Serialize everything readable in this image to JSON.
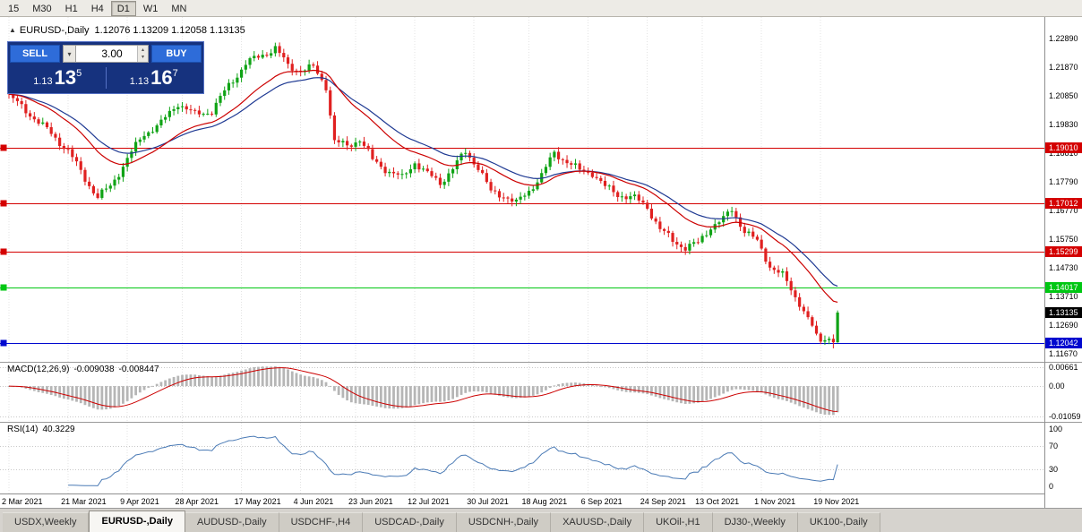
{
  "toolbar": {
    "timeframes": [
      "15",
      "M30",
      "H1",
      "H4",
      "D1",
      "W1",
      "MN"
    ],
    "active": "D1"
  },
  "chart_header": {
    "symbol": "EURUSD-,Daily",
    "ohlc": "1.12076 1.13209 1.12058 1.13135"
  },
  "trade_panel": {
    "sell_label": "SELL",
    "buy_label": "BUY",
    "volume": "3.00",
    "bid": {
      "prefix": "1.13",
      "big": "13",
      "sup": "5"
    },
    "ask": {
      "prefix": "1.13",
      "big": "16",
      "sup": "7"
    }
  },
  "tabs": [
    {
      "label": "USDX,Weekly",
      "active": false
    },
    {
      "label": "EURUSD-,Daily",
      "active": true
    },
    {
      "label": "AUDUSD-,Daily",
      "active": false
    },
    {
      "label": "USDCHF-,H4",
      "active": false
    },
    {
      "label": "USDCAD-,Daily",
      "active": false
    },
    {
      "label": "USDCNH-,Daily",
      "active": false
    },
    {
      "label": "XAUUSD-,Daily",
      "active": false
    },
    {
      "label": "UKOil-,H1",
      "active": false
    },
    {
      "label": "DJ30-,Weekly",
      "active": false
    },
    {
      "label": "UK100-,Daily",
      "active": false
    }
  ],
  "chart_data": {
    "type": "candlestick",
    "symbol": "EURUSD-",
    "timeframe": "Daily",
    "quote": {
      "open": 1.12076,
      "high": 1.13209,
      "low": 1.12058,
      "close": 1.13135
    },
    "pre_close_low": 1.1186,
    "current_price": {
      "label": "1.13135",
      "value": 1.13135,
      "color": "#000000"
    },
    "candles_total": 197,
    "y_ticks": [
      {
        "label": "1.22890",
        "value": 1.2289
      },
      {
        "label": "1.21870",
        "value": 1.2187
      },
      {
        "label": "1.20850",
        "value": 1.2085
      },
      {
        "label": "1.19830",
        "value": 1.1983
      },
      {
        "label": "1.18810",
        "value": 1.1881
      },
      {
        "label": "1.17790",
        "value": 1.1779
      },
      {
        "label": "1.16770",
        "value": 1.1677
      },
      {
        "label": "1.15750",
        "value": 1.1575
      },
      {
        "label": "1.14730",
        "value": 1.1473
      },
      {
        "label": "1.13710",
        "value": 1.1371
      },
      {
        "label": "1.12690",
        "value": 1.1269
      },
      {
        "label": "1.11670",
        "value": 1.1167
      }
    ],
    "levels": [
      {
        "label": "1.19010",
        "value": 1.1901,
        "color": "#d40000"
      },
      {
        "label": "1.17012",
        "value": 1.17012,
        "color": "#d40000"
      },
      {
        "label": "1.15299",
        "value": 1.15299,
        "color": "#d40000"
      },
      {
        "label": "1.14017",
        "value": 1.14017,
        "color": "#00c713"
      },
      {
        "label": "1.12042",
        "value": 1.12042,
        "color": "#0008cf"
      }
    ],
    "x_labels": [
      {
        "label": "2 Mar 2021",
        "index": 0
      },
      {
        "label": "21 Mar 2021",
        "index": 14
      },
      {
        "label": "9 Apr 2021",
        "index": 28
      },
      {
        "label": "28 Apr 2021",
        "index": 41
      },
      {
        "label": "17 May 2021",
        "index": 55
      },
      {
        "label": "4 Jun 2021",
        "index": 69
      },
      {
        "label": "23 Jun 2021",
        "index": 82
      },
      {
        "label": "12 Jul 2021",
        "index": 96
      },
      {
        "label": "30 Jul 2021",
        "index": 110
      },
      {
        "label": "18 Aug 2021",
        "index": 123
      },
      {
        "label": "6 Sep 2021",
        "index": 137
      },
      {
        "label": "24 Sep 2021",
        "index": 151
      },
      {
        "label": "13 Oct 2021",
        "index": 164
      },
      {
        "label": "1 Nov 2021",
        "index": 178
      },
      {
        "label": "19 Nov 2021",
        "index": 192
      }
    ],
    "price_path": [
      [
        0,
        1.2085
      ],
      [
        5,
        1.202
      ],
      [
        10,
        1.195
      ],
      [
        14,
        1.189
      ],
      [
        18,
        1.179
      ],
      [
        21,
        1.1725
      ],
      [
        24,
        1.1762
      ],
      [
        28,
        1.1862
      ],
      [
        32,
        1.195
      ],
      [
        36,
        1.1988
      ],
      [
        40,
        1.206
      ],
      [
        44,
        1.2018
      ],
      [
        48,
        1.2032
      ],
      [
        52,
        1.2122
      ],
      [
        56,
        1.22
      ],
      [
        60,
        1.2232
      ],
      [
        63,
        1.2255
      ],
      [
        66,
        1.2192
      ],
      [
        69,
        1.2176
      ],
      [
        72,
        1.2186
      ],
      [
        75,
        1.212
      ],
      [
        77,
        1.1922
      ],
      [
        80,
        1.1906
      ],
      [
        83,
        1.1932
      ],
      [
        86,
        1.1856
      ],
      [
        90,
        1.1816
      ],
      [
        93,
        1.1792
      ],
      [
        96,
        1.185
      ],
      [
        99,
        1.1806
      ],
      [
        102,
        1.1776
      ],
      [
        105,
        1.1826
      ],
      [
        108,
        1.1886
      ],
      [
        111,
        1.1832
      ],
      [
        114,
        1.1742
      ],
      [
        117,
        1.1732
      ],
      [
        120,
        1.1702
      ],
      [
        123,
        1.1748
      ],
      [
        126,
        1.1802
      ],
      [
        129,
        1.1882
      ],
      [
        132,
        1.1852
      ],
      [
        135,
        1.1818
      ],
      [
        138,
        1.1812
      ],
      [
        141,
        1.176
      ],
      [
        144,
        1.1735
      ],
      [
        148,
        1.172
      ],
      [
        151,
        1.169
      ],
      [
        154,
        1.161
      ],
      [
        157,
        1.157
      ],
      [
        160,
        1.1545
      ],
      [
        163,
        1.156
      ],
      [
        166,
        1.162
      ],
      [
        169,
        1.1645
      ],
      [
        171,
        1.168
      ],
      [
        174,
        1.1605
      ],
      [
        177,
        1.1565
      ],
      [
        180,
        1.148
      ],
      [
        183,
        1.1445
      ],
      [
        186,
        1.137
      ],
      [
        189,
        1.1295
      ],
      [
        192,
        1.121
      ],
      [
        194,
        1.122
      ],
      [
        195,
        1.12076
      ],
      [
        196,
        1.13135
      ]
    ],
    "macd": {
      "name": "MACD(12,26,9)",
      "main": "-0.009038",
      "signal": "-0.008447",
      "axis": [
        {
          "label": "0.00661",
          "value": 0.00661
        },
        {
          "label": "0.00",
          "value": 0
        },
        {
          "label": "-0.01059",
          "value": -0.01059
        }
      ]
    },
    "rsi": {
      "name": "RSI(14)",
      "value": "40.3229",
      "levels": [
        70,
        30
      ],
      "axis": [
        {
          "label": "100",
          "value": 100
        },
        {
          "label": "70",
          "value": 70
        },
        {
          "label": "30",
          "value": 30
        },
        {
          "label": "0",
          "value": 0
        }
      ]
    },
    "colors": {
      "bull": "#0fa315",
      "bear": "#e02020",
      "ma_fast": "#cc0000",
      "ma_slow": "#1f3a93",
      "macd_hist": "#b6b6b6",
      "macd_signal": "#cc0000",
      "rsi_line": "#4a7ab5",
      "grid": "#e3e3e3",
      "divider": "#9a9a9a"
    }
  }
}
